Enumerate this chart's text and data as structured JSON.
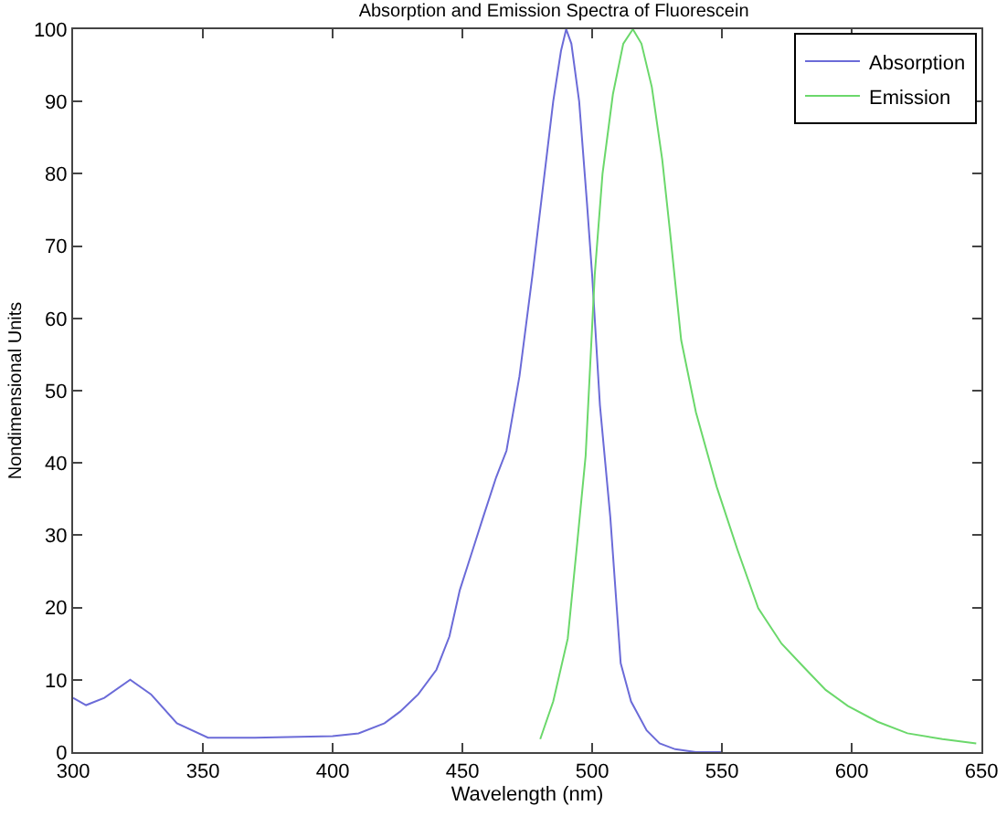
{
  "chart_data": {
    "type": "line",
    "title": "Absorption and Emission Spectra of Fluorescein",
    "xlabel": "Wavelength (nm)",
    "ylabel": "Nondimensional Units",
    "xlim": [
      300,
      650
    ],
    "xticks": [
      300,
      350,
      400,
      450,
      500,
      550,
      600,
      650
    ],
    "ylim": [
      0,
      100
    ],
    "yticks": [
      0,
      10,
      20,
      30,
      40,
      50,
      60,
      70,
      80,
      90,
      100
    ],
    "grid": false,
    "legend": "top right",
    "line_style": "solid",
    "marker": "none",
    "series": [
      {
        "name": "Absorption",
        "color": "#6b6bd8",
        "x": [
          300,
          305,
          312,
          322,
          330,
          340,
          352,
          370,
          400,
          410,
          420,
          426,
          433,
          440,
          445,
          449,
          454,
          458,
          463,
          467,
          472,
          477,
          481,
          485,
          488,
          490,
          492,
          495,
          498,
          500,
          503,
          507,
          511,
          515,
          521,
          526,
          532,
          540,
          550
        ],
        "values": [
          7.5,
          6.5,
          7.5,
          10,
          8,
          4,
          2,
          2,
          2.2,
          2.6,
          4,
          5.6,
          8,
          11.4,
          16,
          22.4,
          28,
          32.5,
          38,
          41.7,
          52,
          66,
          78,
          90,
          97,
          100,
          98,
          90,
          76,
          66,
          48,
          32.5,
          12.3,
          7,
          3,
          1.2,
          0.4,
          0,
          0
        ]
      },
      {
        "name": "Emission",
        "color": "#6bd86b",
        "x": [
          480,
          485,
          490.6,
          494,
          497.5,
          501,
          504,
          508,
          512,
          515.7,
          519,
          523,
          527,
          530,
          534.3,
          540,
          548,
          556,
          564,
          573,
          582.5,
          590,
          598.5,
          610,
          621.5,
          635,
          648
        ],
        "values": [
          1.8,
          7,
          15.7,
          28,
          41,
          66,
          80,
          91,
          98,
          100,
          98,
          92,
          82,
          72,
          57,
          47,
          36.7,
          28,
          19.9,
          15,
          11.4,
          8.6,
          6.4,
          4.2,
          2.6,
          1.8,
          1.2
        ]
      }
    ]
  }
}
